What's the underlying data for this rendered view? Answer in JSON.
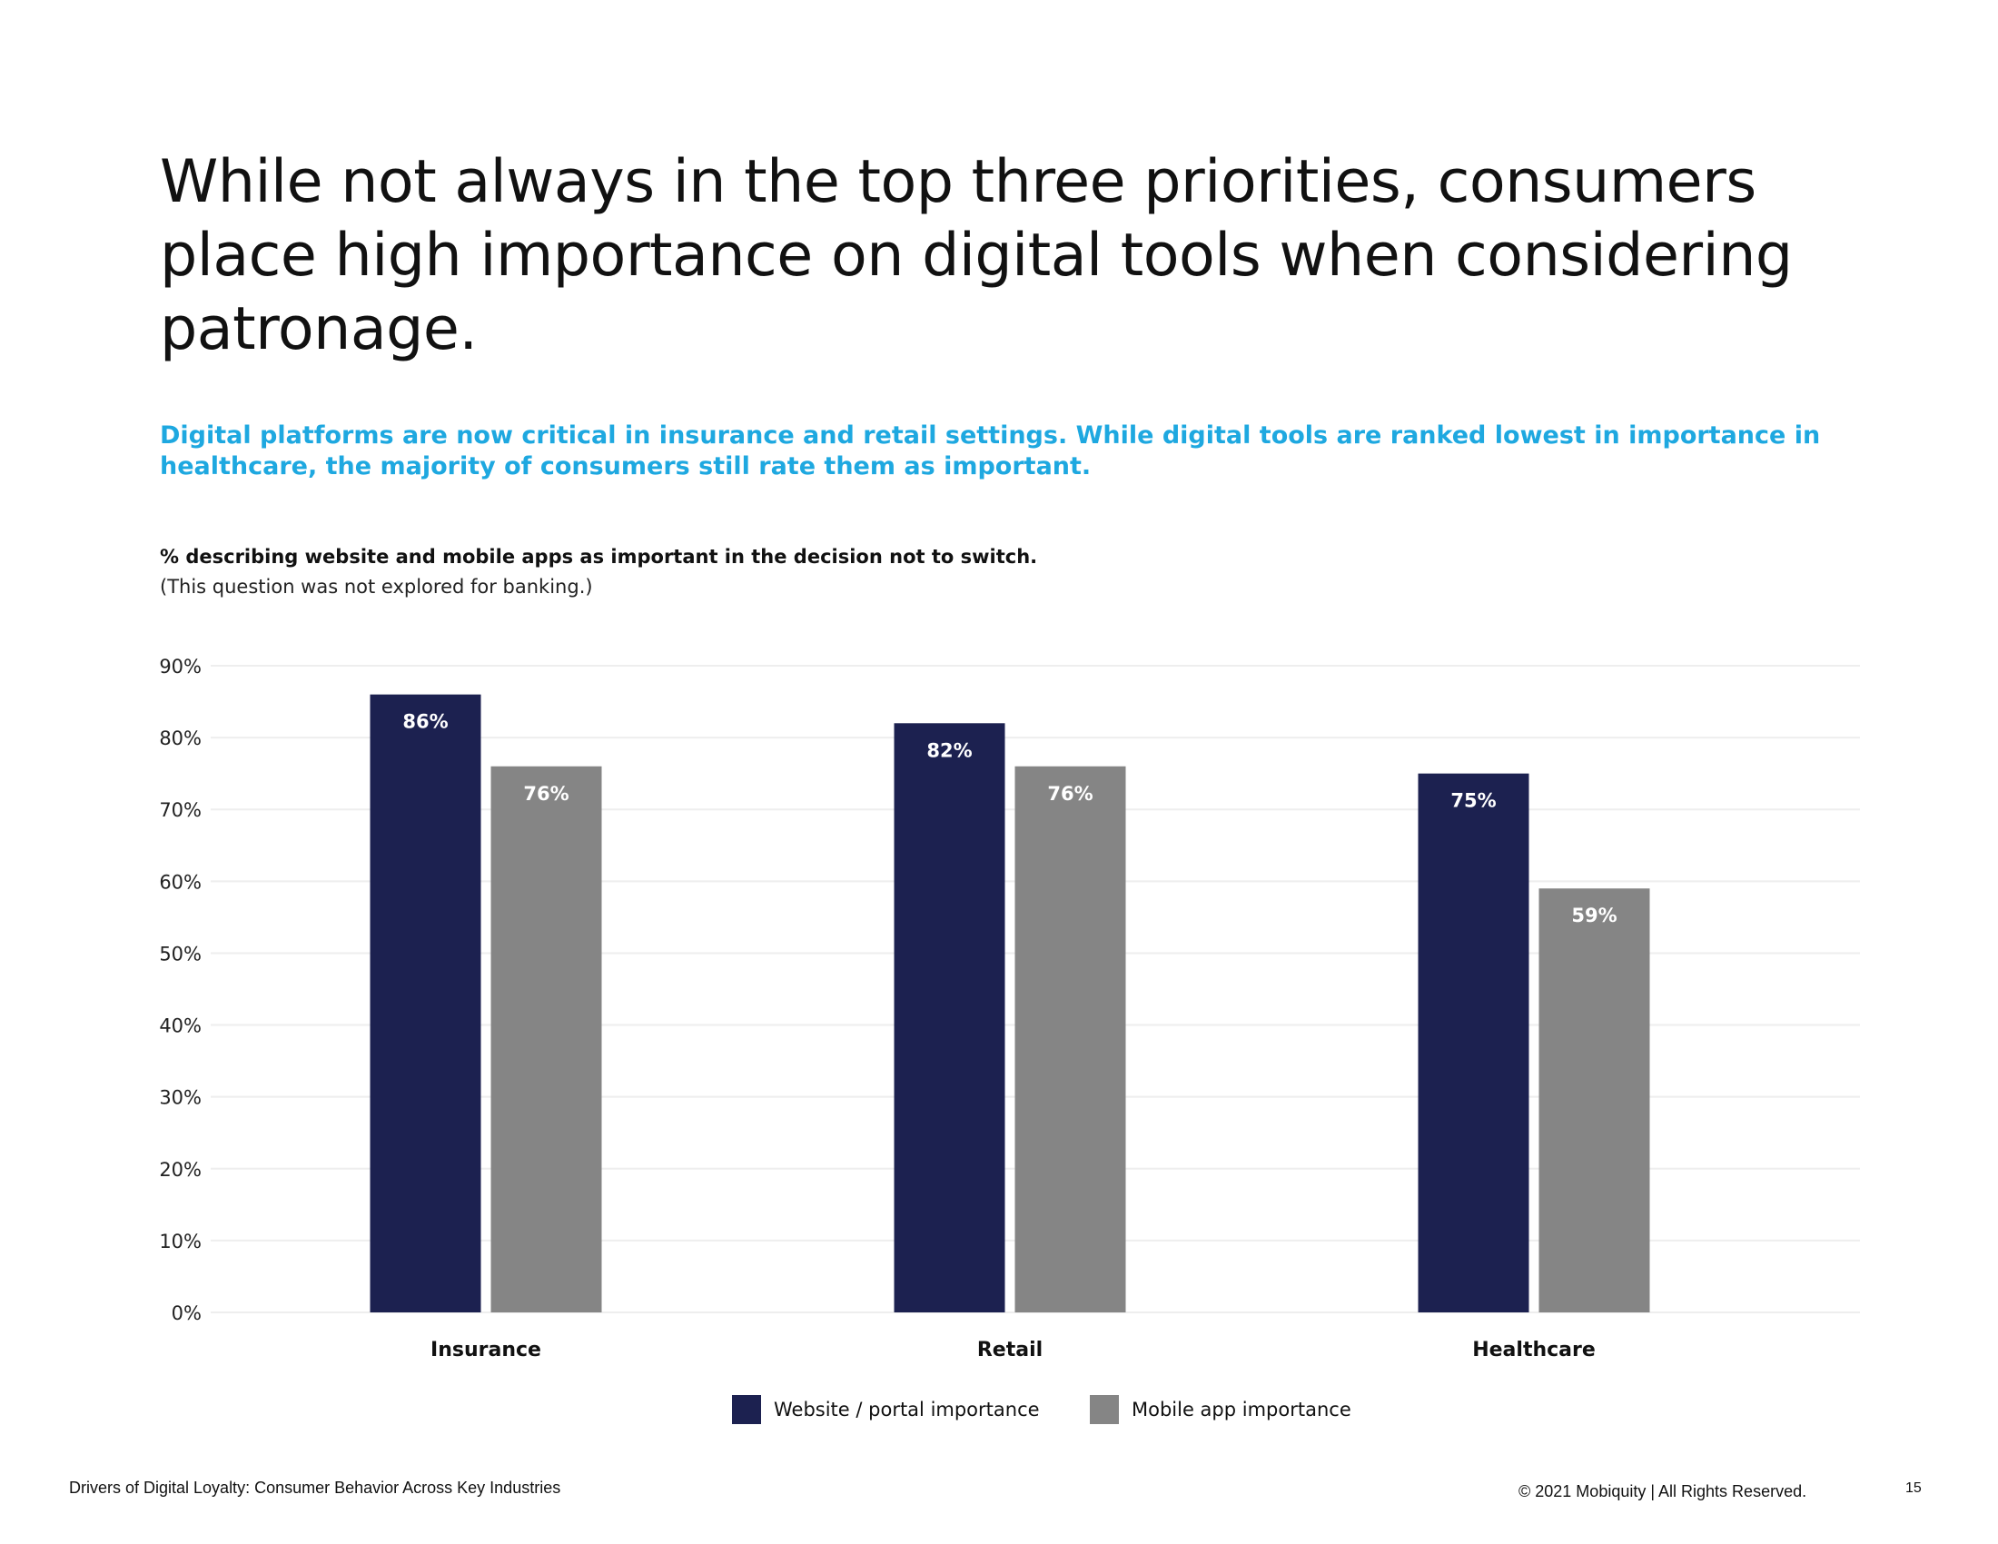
{
  "page": {
    "title": "While not always in the top three priorities, consumers place high importance on digital tools when considering patronage.",
    "subtitle": "Digital platforms are now critical in insurance and retail settings. While digital tools are ranked lowest in importance in healthcare, the majority of consumers still rate them as important.",
    "chart_caption": "% describing website and mobile apps as important in the decision not to switch.",
    "chart_note": "(This question was not explored for banking.)",
    "footer_left": "Drivers of Digital Loyalty: Consumer Behavior Across Key Industries",
    "footer_right": "© 2021 Mobiquity  |  All Rights Reserved.",
    "page_number": "15"
  },
  "colors": {
    "website": "#1c2150",
    "mobile": "#858585",
    "accent": "#1ea8e0",
    "grid": "#eeeeee"
  },
  "chart_data": {
    "type": "bar",
    "title": "% describing website and mobile apps as important in the decision not to switch.",
    "xlabel": "",
    "ylabel": "",
    "categories": [
      "Insurance",
      "Retail",
      "Healthcare"
    ],
    "series": [
      {
        "name": "Website / portal importance",
        "values": [
          86,
          82,
          75
        ],
        "labels": [
          "86%",
          "82%",
          "75%"
        ]
      },
      {
        "name": "Mobile app importance",
        "values": [
          76,
          76,
          59
        ],
        "labels": [
          "76%",
          "76%",
          "59%"
        ]
      }
    ],
    "ylim": [
      0,
      90
    ],
    "yticks": [
      0,
      10,
      20,
      30,
      40,
      50,
      60,
      70,
      80,
      90
    ],
    "ytick_labels": [
      "0%",
      "10%",
      "20%",
      "30%",
      "40%",
      "50%",
      "60%",
      "70%",
      "80%",
      "90%"
    ],
    "grid": true,
    "legend_position": "bottom-center"
  }
}
